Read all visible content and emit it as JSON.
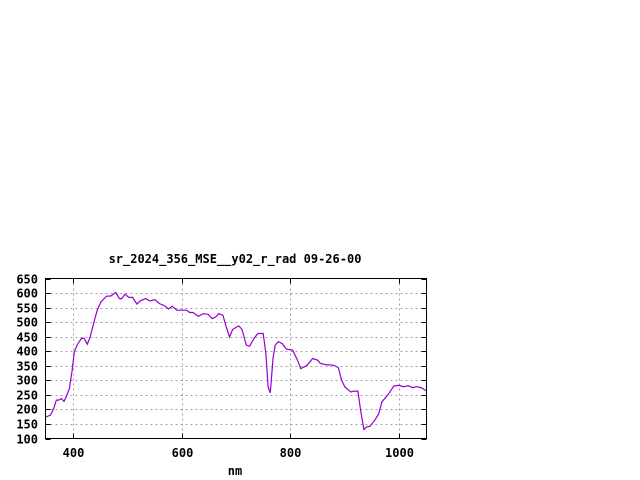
{
  "chart_data": {
    "type": "line",
    "title": "sr_2024_356_MSE__y02_r_rad 09-26-00",
    "xlabel": "nm",
    "ylabel": "",
    "xlim": [
      350,
      1050
    ],
    "ylim": [
      100,
      650
    ],
    "xticks": [
      400,
      600,
      800,
      1000
    ],
    "yticks": [
      100,
      150,
      200,
      250,
      300,
      350,
      400,
      450,
      500,
      550,
      600,
      650
    ],
    "grid": true,
    "line_color": "#9400d3",
    "series": [
      {
        "x": [
          351,
          359,
          365,
          370,
          374,
          379,
          384,
          388,
          394,
          399,
          403,
          408,
          416,
          421,
          427,
          432,
          440,
          445,
          452,
          462,
          470,
          479,
          486,
          490,
          496,
          503,
          510,
          518,
          524,
          534,
          542,
          551,
          559,
          570,
          576,
          583,
          591,
          609,
          615,
          621,
          631,
          640,
          649,
          656,
          663,
          668,
          676,
          682,
          688,
          694,
          705,
          711,
          719,
          725,
          733,
          740,
          750,
          755,
          759,
          763,
          768,
          772,
          778,
          785,
          793,
          804,
          813,
          819,
          830,
          841,
          850,
          855,
          864,
          879,
          888,
          894,
          900,
          911,
          917,
          924,
          929,
          935,
          940,
          946,
          955,
          962,
          968,
          980,
          990,
          1000,
          1007,
          1017,
          1024,
          1032,
          1040,
          1049
        ],
        "y": [
          174,
          180,
          203,
          232,
          232,
          237,
          228,
          243,
          272,
          335,
          398,
          421,
          444,
          444,
          424,
          449,
          507,
          541,
          570,
          589,
          590,
          602,
          581,
          581,
          596,
          585,
          585,
          562,
          573,
          581,
          573,
          577,
          564,
          555,
          545,
          555,
          541,
          541,
          533,
          533,
          520,
          529,
          527,
          512,
          518,
          529,
          524,
          484,
          449,
          475,
          487,
          475,
          421,
          417,
          444,
          461,
          461,
          392,
          277,
          257,
          375,
          421,
          433,
          426,
          407,
          404,
          369,
          340,
          351,
          375,
          369,
          358,
          354,
          352,
          344,
          300,
          277,
          260,
          263,
          263,
          197,
          131,
          140,
          142,
          163,
          184,
          226,
          252,
          280,
          283,
          278,
          281,
          275,
          278,
          275,
          264
        ]
      }
    ]
  }
}
